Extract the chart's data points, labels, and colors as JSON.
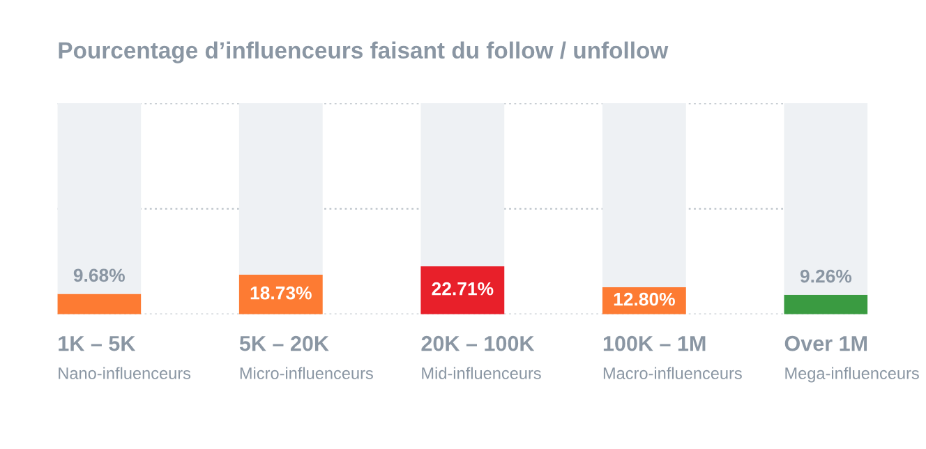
{
  "chart_data": {
    "type": "bar",
    "title": "Pourcentage d’influenceurs faisant du follow / unfollow",
    "categories": [
      "1K – 5K\nNano-influenceurs",
      "5K – 20K\nMicro-influenceurs",
      "20K – 100K\nMid-influenceurs",
      "100K – 1M\nMacro-influenceurs",
      "Over 1M\nMega-influenceurs"
    ],
    "series": [
      {
        "colors": [
          "#fd7b33",
          "#fd7b33",
          "#e8202a",
          "#fd7b33",
          "#3a9b41"
        ],
        "values": [
          9.68,
          18.73,
          22.71,
          12.8,
          9.26
        ],
        "value_labels": [
          "9.68%",
          "18.73%",
          "22.71%",
          "12.80%",
          "9.26%"
        ]
      },
      {
        "color": "#eef1f4",
        "values": [
          90.32,
          81.27,
          77.29,
          87.2,
          90.74
        ],
        "value_labels": [
          null,
          null,
          null,
          null,
          null
        ]
      }
    ],
    "stacked": true,
    "ylim": [
      0,
      100
    ],
    "yticks": [
      {
        "value": 0,
        "label": null
      },
      {
        "value": 50,
        "label": null
      },
      {
        "value": 100,
        "label": null
      }
    ],
    "tick_labels": "x",
    "grid": "y",
    "line_style": "dotted",
    "legend": false
  }
}
